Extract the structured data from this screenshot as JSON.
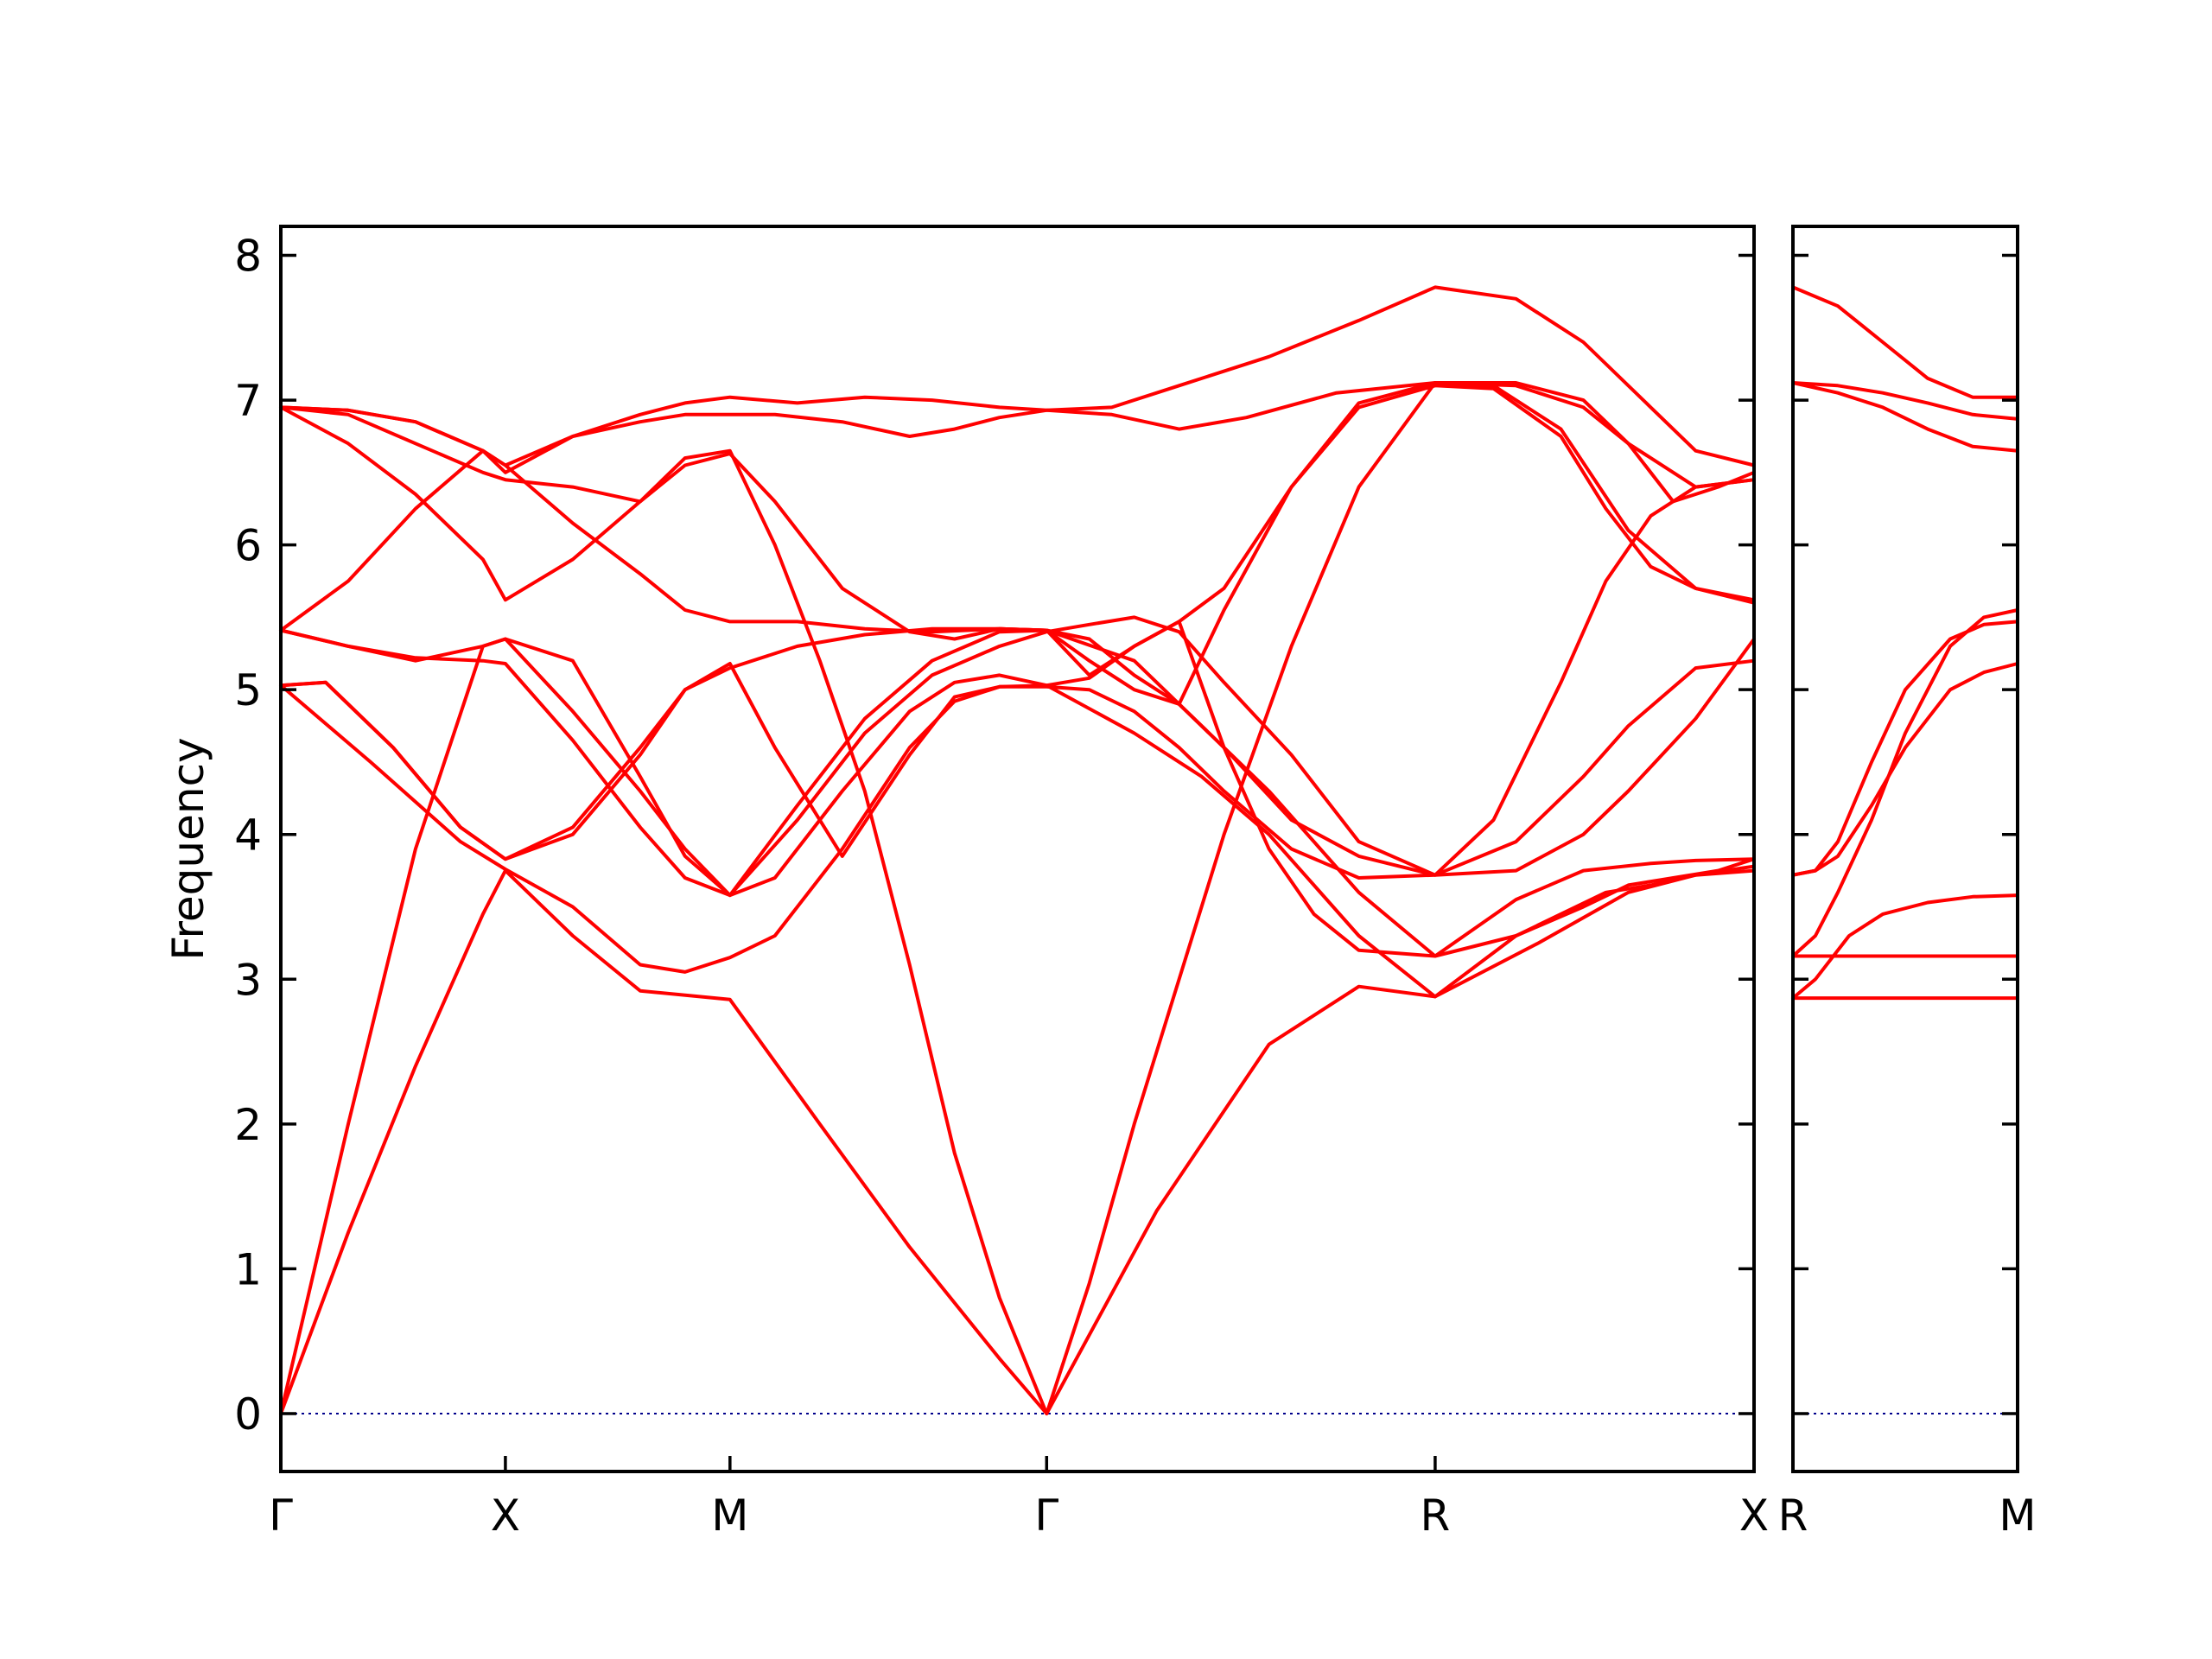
{
  "chart_data": {
    "type": "line",
    "title": "",
    "xlabel": "",
    "ylabel": "Frequency",
    "ylim": [
      -0.4,
      8.2
    ],
    "yticks": [
      0,
      1,
      2,
      3,
      4,
      5,
      6,
      7,
      8
    ],
    "colors": {
      "bands": "#ff0000",
      "zero_line": "#00008b",
      "frame": "#000000"
    },
    "panels": [
      {
        "name": "main-panel",
        "xlim": [
          0,
          6.56
        ],
        "ticks": [
          {
            "x": 0,
            "label": "Γ"
          },
          {
            "x": 1.0,
            "label": "X"
          },
          {
            "x": 2.0,
            "label": "M"
          },
          {
            "x": 3.41,
            "label": "Γ"
          },
          {
            "x": 5.14,
            "label": "R"
          },
          {
            "x": 6.56,
            "label": "X"
          }
        ],
        "series": [
          {
            "x": [
              0,
              0.3,
              0.6,
              0.9,
              1.0,
              1.3,
              1.6,
              2.0,
              2.4,
              2.8,
              3.2,
              3.41,
              3.9,
              4.4,
              4.8,
              5.14,
              5.6,
              6.0,
              6.3,
              6.56
            ],
            "y": [
              0,
              1.25,
              2.4,
              3.45,
              3.75,
              3.3,
              2.92,
              2.86,
              2.0,
              1.15,
              0.38,
              0,
              1.4,
              2.55,
              2.95,
              2.88,
              3.25,
              3.6,
              3.72,
              3.75
            ]
          },
          {
            "x": [
              0,
              0.3,
              0.6,
              0.9,
              1.0,
              1.3,
              1.6,
              1.8,
              2.0,
              2.2,
              2.5,
              2.8,
              3.0,
              3.2,
              3.41,
              3.6,
              3.8,
              4.0,
              4.2,
              4.4,
              4.6,
              4.8,
              5.14,
              5.5,
              5.8,
              6.1,
              6.3,
              6.56
            ],
            "y": [
              0,
              2.0,
              3.9,
              5.3,
              5.35,
              5.2,
              4.4,
              3.85,
              3.58,
              3.7,
              4.3,
              4.85,
              5.05,
              5.1,
              5.03,
              5.08,
              5.3,
              5.47,
              4.6,
              3.9,
              3.45,
              3.2,
              3.16,
              3.55,
              3.75,
              3.8,
              3.82,
              3.83
            ]
          },
          {
            "x": [
              0,
              0.4,
              0.8,
              1.0,
              1.3,
              1.6,
              1.8,
              2.0,
              2.2,
              2.5,
              2.8,
              3.0,
              3.2,
              3.41,
              3.8,
              4.1,
              4.4,
              4.8,
              5.14,
              5.5,
              5.9,
              6.1,
              6.3,
              6.56
            ],
            "y": [
              5.03,
              4.5,
              3.95,
              3.76,
              3.5,
              3.1,
              3.05,
              3.15,
              3.3,
              3.9,
              4.6,
              4.92,
              5.02,
              5.03,
              4.7,
              4.4,
              4.0,
              3.3,
              2.88,
              3.3,
              3.6,
              3.65,
              3.72,
              3.78
            ]
          },
          {
            "x": [
              0,
              0.2,
              0.5,
              0.8,
              1.0,
              1.3,
              1.6,
              1.8,
              2.0,
              2.2,
              2.5,
              2.8,
              3.0,
              3.2,
              3.41,
              3.6,
              3.8,
              4.0,
              4.2,
              4.5,
              4.8,
              5.14,
              5.5,
              5.8,
              6.0,
              6.3,
              6.56
            ],
            "y": [
              5.03,
              5.05,
              4.6,
              4.05,
              3.83,
              4.05,
              4.6,
              5.0,
              5.18,
              4.6,
              3.85,
              4.55,
              4.95,
              5.02,
              5.02,
              5.0,
              4.85,
              4.6,
              4.3,
              3.9,
              3.7,
              3.72,
              3.95,
              4.4,
              4.75,
              5.15,
              5.2
            ]
          },
          {
            "x": [
              0,
              0.3,
              0.6,
              0.9,
              1.0,
              1.3,
              1.6,
              1.8,
              2.0,
              2.3,
              2.6,
              2.9,
              3.2,
              3.41,
              3.6,
              3.8,
              4.0,
              4.2,
              4.5,
              4.8,
              5.14,
              5.5,
              5.8,
              6.0,
              6.3,
              6.56
            ],
            "y": [
              5.41,
              5.3,
              5.22,
              5.2,
              5.18,
              4.65,
              4.05,
              3.7,
              3.58,
              4.1,
              4.7,
              5.1,
              5.3,
              5.4,
              5.45,
              5.5,
              5.4,
              5.05,
              4.55,
              3.95,
              3.72,
              3.75,
              4.0,
              4.3,
              4.8,
              5.35
            ]
          },
          {
            "x": [
              0,
              0.3,
              0.6,
              0.9,
              1.0,
              1.3,
              1.6,
              1.8,
              2.0,
              2.3,
              2.6,
              2.9,
              3.2,
              3.41,
              3.8,
              4.2,
              4.5,
              4.8,
              5.14,
              5.4,
              5.7,
              5.9,
              6.1,
              6.3,
              6.56
            ],
            "y": [
              5.41,
              5.3,
              5.2,
              5.3,
              5.35,
              4.85,
              4.3,
              3.9,
              3.58,
              4.2,
              4.8,
              5.2,
              5.4,
              5.41,
              5.2,
              4.6,
              4.1,
              3.85,
              3.72,
              4.1,
              5.05,
              5.75,
              6.2,
              6.4,
              6.45
            ]
          },
          {
            "x": [
              0,
              0.3,
              0.6,
              0.9,
              1.0,
              1.3,
              1.6,
              1.8,
              2.0,
              2.3,
              2.6,
              2.9,
              3.2,
              3.41,
              3.6,
              3.8,
              4.0,
              4.2,
              4.5,
              4.8,
              5.14,
              5.4,
              5.7,
              5.9,
              6.1,
              6.3,
              6.56
            ],
            "y": [
              5.41,
              5.75,
              6.25,
              6.65,
              6.55,
              6.15,
              5.8,
              5.55,
              5.47,
              5.47,
              5.42,
              5.4,
              5.42,
              5.41,
              5.1,
              5.3,
              5.47,
              5.7,
              6.4,
              6.95,
              7.1,
              7.08,
              6.75,
              6.25,
              5.85,
              5.7,
              5.6
            ]
          },
          {
            "x": [
              0,
              0.3,
              0.6,
              0.9,
              1.0,
              1.3,
              1.6,
              1.8,
              2.0,
              2.2,
              2.5,
              2.8,
              3.0,
              3.2,
              3.41,
              3.6,
              3.8,
              4.0,
              4.2,
              4.5,
              4.8,
              5.14,
              5.4,
              5.7,
              6.0,
              6.3,
              6.56
            ],
            "y": [
              6.95,
              6.7,
              6.35,
              5.9,
              5.62,
              5.9,
              6.3,
              6.55,
              6.63,
              6.3,
              5.7,
              5.4,
              5.35,
              5.42,
              5.41,
              5.2,
              5.0,
              4.9,
              5.55,
              6.4,
              6.98,
              7.12,
              7.1,
              6.8,
              6.1,
              5.7,
              5.62
            ]
          },
          {
            "x": [
              0,
              0.3,
              0.6,
              0.9,
              1.0,
              1.3,
              1.6,
              1.8,
              2.0,
              2.2,
              2.4,
              2.6,
              2.8,
              3.0,
              3.2,
              3.41,
              3.6,
              3.8,
              4.0,
              4.2,
              4.5,
              4.8,
              5.14,
              5.5,
              5.8,
              6.0,
              6.3,
              6.56
            ],
            "y": [
              6.95,
              6.9,
              6.7,
              6.5,
              6.45,
              6.4,
              6.3,
              6.6,
              6.65,
              6.0,
              5.2,
              4.3,
              3.1,
              1.8,
              0.8,
              0,
              0.9,
              2.0,
              3.0,
              4.0,
              5.3,
              6.4,
              7.12,
              7.1,
              6.95,
              6.7,
              6.4,
              6.45
            ]
          },
          {
            "x": [
              0,
              0.3,
              0.6,
              0.9,
              1.0,
              1.3,
              1.6,
              1.8,
              2.0,
              2.2,
              2.5,
              2.8,
              3.0,
              3.2,
              3.41,
              3.7,
              4.0,
              4.4,
              4.8,
              5.14,
              5.5,
              5.8,
              6.1,
              6.3,
              6.56
            ],
            "y": [
              6.95,
              6.93,
              6.85,
              6.65,
              6.5,
              6.75,
              6.85,
              6.9,
              6.9,
              6.9,
              6.85,
              6.75,
              6.8,
              6.88,
              6.93,
              6.95,
              7.1,
              7.3,
              7.55,
              7.78,
              7.7,
              7.4,
              6.95,
              6.65,
              6.55
            ]
          },
          {
            "x": [
              0,
              0.3,
              0.6,
              0.9,
              1.0,
              1.3,
              1.6,
              1.8,
              2.0,
              2.3,
              2.6,
              2.9,
              3.2,
              3.41,
              3.7,
              4.0,
              4.3,
              4.7,
              5.14,
              5.5,
              5.8,
              6.0,
              6.2,
              6.4,
              6.56
            ],
            "y": [
              6.95,
              6.93,
              6.85,
              6.65,
              6.55,
              6.75,
              6.9,
              6.98,
              7.02,
              6.98,
              7.02,
              7.0,
              6.95,
              6.93,
              6.9,
              6.8,
              6.88,
              7.05,
              7.12,
              7.12,
              7.0,
              6.7,
              6.3,
              6.4,
              6.5
            ]
          },
          {
            "x": [
              0,
              0.2,
              0.5,
              0.8,
              1.0,
              1.3,
              1.6,
              1.8,
              2.0,
              2.3,
              2.6,
              2.9,
              3.2,
              3.41,
              3.6,
              3.8,
              4.0,
              4.2,
              4.4,
              4.6,
              4.8,
              5.14,
              5.5,
              5.8,
              6.0,
              6.2,
              6.4,
              6.56
            ],
            "y": [
              5.03,
              5.05,
              4.6,
              4.05,
              3.83,
              4.0,
              4.55,
              5.0,
              5.15,
              5.3,
              5.38,
              5.42,
              5.42,
              5.41,
              5.35,
              5.1,
              4.9,
              4.6,
              4.3,
              3.95,
              3.6,
              3.16,
              3.3,
              3.5,
              3.65,
              3.7,
              3.75,
              3.83
            ]
          }
        ]
      },
      {
        "name": "side-panel",
        "xlim": [
          0,
          1
        ],
        "ticks": [
          {
            "x": 0,
            "label": "R"
          },
          {
            "x": 1,
            "label": "M"
          }
        ],
        "series": [
          {
            "x": [
              0,
              1
            ],
            "y": [
              2.87,
              2.87
            ]
          },
          {
            "x": [
              0,
              1
            ],
            "y": [
              3.16,
              3.16
            ]
          },
          {
            "x": [
              0,
              0.1,
              0.25,
              0.4,
              0.6,
              0.8,
              1.0
            ],
            "y": [
              2.87,
              3.0,
              3.3,
              3.45,
              3.53,
              3.57,
              3.58
            ]
          },
          {
            "x": [
              0,
              0.1,
              0.2,
              0.35,
              0.5,
              0.7,
              0.85,
              1.0
            ],
            "y": [
              3.16,
              3.3,
              3.6,
              4.1,
              4.7,
              5.3,
              5.5,
              5.55
            ]
          },
          {
            "x": [
              0,
              0.1,
              0.2,
              0.35,
              0.5,
              0.7,
              0.85,
              1.0
            ],
            "y": [
              3.72,
              3.75,
              3.95,
              4.5,
              5.0,
              5.35,
              5.45,
              5.47
            ]
          },
          {
            "x": [
              0,
              0.1,
              0.2,
              0.35,
              0.5,
              0.7,
              0.85,
              1.0
            ],
            "y": [
              3.72,
              3.75,
              3.85,
              4.2,
              4.6,
              5.0,
              5.12,
              5.18
            ]
          },
          {
            "x": [
              0,
              0.2,
              0.4,
              0.6,
              0.8,
              1.0
            ],
            "y": [
              7.12,
              7.05,
              6.95,
              6.8,
              6.68,
              6.65
            ]
          },
          {
            "x": [
              0,
              0.2,
              0.4,
              0.6,
              0.8,
              1.0
            ],
            "y": [
              7.12,
              7.1,
              7.05,
              6.98,
              6.9,
              6.87
            ]
          },
          {
            "x": [
              0,
              0.2,
              0.4,
              0.6,
              0.8,
              1.0
            ],
            "y": [
              7.78,
              7.65,
              7.4,
              7.15,
              7.02,
              7.02
            ]
          }
        ]
      }
    ]
  }
}
